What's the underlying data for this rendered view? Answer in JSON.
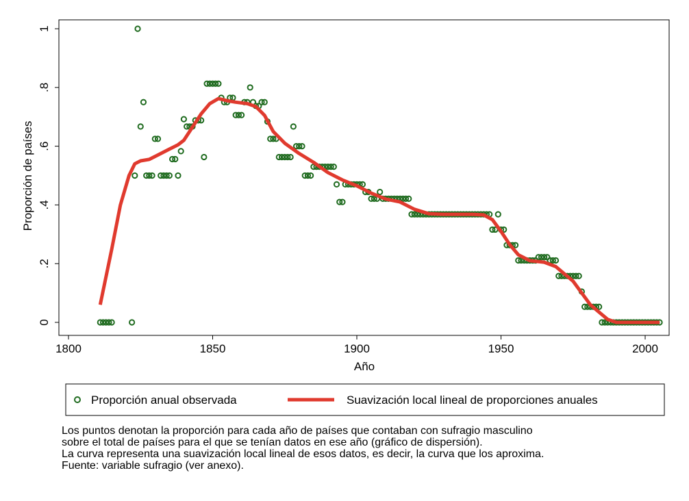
{
  "chart_data": {
    "type": "scatter",
    "xlabel": "Año",
    "ylabel": "Proporción de países",
    "xlim": [
      1800,
      2005
    ],
    "ylim": [
      0,
      1
    ],
    "x_ticks": [
      {
        "value": 1800,
        "label": "1800"
      },
      {
        "value": 1850,
        "label": "1850"
      },
      {
        "value": 1900,
        "label": "1900"
      },
      {
        "value": 1950,
        "label": "1950"
      },
      {
        "value": 2000,
        "label": "2000"
      }
    ],
    "y_ticks": [
      {
        "value": 0,
        "label": "0"
      },
      {
        "value": 0.2,
        "label": ".2"
      },
      {
        "value": 0.4,
        "label": ".4"
      },
      {
        "value": 0.6,
        "label": ".6"
      },
      {
        "value": 0.8,
        "label": ".8"
      },
      {
        "value": 1,
        "label": "1"
      }
    ],
    "grid": false,
    "legend_position": "bottom",
    "legend": [
      {
        "label": "Proporción anual observada",
        "marker": "hollow-circle",
        "color": "#1f6b1f"
      },
      {
        "label": "Suavización local lineal de proporciones anuales",
        "marker": "line",
        "color": "#e03a2e"
      }
    ],
    "series": [
      {
        "kind": "scatter",
        "color": "#1f6b1f",
        "points": [
          [
            1811,
            0
          ],
          [
            1812,
            0
          ],
          [
            1813,
            0
          ],
          [
            1814,
            0
          ],
          [
            1815,
            0
          ],
          [
            1822,
            0
          ],
          [
            1823,
            0.5
          ],
          [
            1824,
            1
          ],
          [
            1825,
            0.667
          ],
          [
            1826,
            0.75
          ],
          [
            1827,
            0.5
          ],
          [
            1828,
            0.5
          ],
          [
            1829,
            0.5
          ],
          [
            1830,
            0.625
          ],
          [
            1831,
            0.625
          ],
          [
            1832,
            0.5
          ],
          [
            1833,
            0.5
          ],
          [
            1834,
            0.5
          ],
          [
            1835,
            0.5
          ],
          [
            1836,
            0.556
          ],
          [
            1837,
            0.556
          ],
          [
            1838,
            0.5
          ],
          [
            1839,
            0.583
          ],
          [
            1840,
            0.692
          ],
          [
            1841,
            0.667
          ],
          [
            1842,
            0.667
          ],
          [
            1843,
            0.667
          ],
          [
            1844,
            0.688
          ],
          [
            1845,
            0.688
          ],
          [
            1846,
            0.688
          ],
          [
            1847,
            0.563
          ],
          [
            1848,
            0.813
          ],
          [
            1849,
            0.813
          ],
          [
            1850,
            0.813
          ],
          [
            1851,
            0.813
          ],
          [
            1852,
            0.813
          ],
          [
            1853,
            0.765
          ],
          [
            1854,
            0.75
          ],
          [
            1855,
            0.75
          ],
          [
            1856,
            0.765
          ],
          [
            1857,
            0.765
          ],
          [
            1858,
            0.706
          ],
          [
            1859,
            0.706
          ],
          [
            1860,
            0.706
          ],
          [
            1861,
            0.75
          ],
          [
            1862,
            0.75
          ],
          [
            1863,
            0.8
          ],
          [
            1864,
            0.75
          ],
          [
            1865,
            0.737
          ],
          [
            1866,
            0.737
          ],
          [
            1867,
            0.75
          ],
          [
            1868,
            0.75
          ],
          [
            1869,
            0.684
          ],
          [
            1870,
            0.625
          ],
          [
            1871,
            0.625
          ],
          [
            1872,
            0.625
          ],
          [
            1873,
            0.563
          ],
          [
            1874,
            0.563
          ],
          [
            1875,
            0.563
          ],
          [
            1876,
            0.563
          ],
          [
            1877,
            0.563
          ],
          [
            1878,
            0.667
          ],
          [
            1879,
            0.6
          ],
          [
            1880,
            0.6
          ],
          [
            1881,
            0.6
          ],
          [
            1882,
            0.5
          ],
          [
            1883,
            0.5
          ],
          [
            1884,
            0.5
          ],
          [
            1885,
            0.53
          ],
          [
            1886,
            0.53
          ],
          [
            1887,
            0.53
          ],
          [
            1888,
            0.53
          ],
          [
            1889,
            0.53
          ],
          [
            1890,
            0.53
          ],
          [
            1891,
            0.53
          ],
          [
            1892,
            0.53
          ],
          [
            1893,
            0.47
          ],
          [
            1894,
            0.41
          ],
          [
            1895,
            0.41
          ],
          [
            1896,
            0.47
          ],
          [
            1897,
            0.47
          ],
          [
            1898,
            0.47
          ],
          [
            1899,
            0.47
          ],
          [
            1900,
            0.47
          ],
          [
            1901,
            0.47
          ],
          [
            1902,
            0.47
          ],
          [
            1903,
            0.444
          ],
          [
            1904,
            0.444
          ],
          [
            1905,
            0.421
          ],
          [
            1906,
            0.421
          ],
          [
            1907,
            0.421
          ],
          [
            1908,
            0.444
          ],
          [
            1909,
            0.421
          ],
          [
            1910,
            0.421
          ],
          [
            1911,
            0.421
          ],
          [
            1912,
            0.421
          ],
          [
            1913,
            0.421
          ],
          [
            1914,
            0.421
          ],
          [
            1915,
            0.421
          ],
          [
            1916,
            0.421
          ],
          [
            1917,
            0.421
          ],
          [
            1918,
            0.421
          ],
          [
            1919,
            0.368
          ],
          [
            1920,
            0.368
          ],
          [
            1921,
            0.368
          ],
          [
            1922,
            0.368
          ],
          [
            1923,
            0.368
          ],
          [
            1924,
            0.368
          ],
          [
            1925,
            0.368
          ],
          [
            1926,
            0.368
          ],
          [
            1927,
            0.368
          ],
          [
            1928,
            0.368
          ],
          [
            1929,
            0.368
          ],
          [
            1930,
            0.368
          ],
          [
            1931,
            0.368
          ],
          [
            1932,
            0.368
          ],
          [
            1933,
            0.368
          ],
          [
            1934,
            0.368
          ],
          [
            1935,
            0.368
          ],
          [
            1936,
            0.368
          ],
          [
            1937,
            0.368
          ],
          [
            1938,
            0.368
          ],
          [
            1939,
            0.368
          ],
          [
            1940,
            0.368
          ],
          [
            1941,
            0.368
          ],
          [
            1942,
            0.368
          ],
          [
            1943,
            0.368
          ],
          [
            1944,
            0.368
          ],
          [
            1945,
            0.368
          ],
          [
            1946,
            0.368
          ],
          [
            1947,
            0.316
          ],
          [
            1948,
            0.316
          ],
          [
            1949,
            0.368
          ],
          [
            1950,
            0.316
          ],
          [
            1951,
            0.316
          ],
          [
            1952,
            0.263
          ],
          [
            1953,
            0.263
          ],
          [
            1954,
            0.263
          ],
          [
            1955,
            0.263
          ],
          [
            1956,
            0.211
          ],
          [
            1957,
            0.211
          ],
          [
            1958,
            0.211
          ],
          [
            1959,
            0.211
          ],
          [
            1960,
            0.211
          ],
          [
            1961,
            0.211
          ],
          [
            1962,
            0.211
          ],
          [
            1963,
            0.222
          ],
          [
            1964,
            0.222
          ],
          [
            1965,
            0.222
          ],
          [
            1966,
            0.222
          ],
          [
            1967,
            0.211
          ],
          [
            1968,
            0.211
          ],
          [
            1969,
            0.211
          ],
          [
            1970,
            0.158
          ],
          [
            1971,
            0.158
          ],
          [
            1972,
            0.158
          ],
          [
            1973,
            0.158
          ],
          [
            1974,
            0.158
          ],
          [
            1975,
            0.158
          ],
          [
            1976,
            0.158
          ],
          [
            1977,
            0.158
          ],
          [
            1978,
            0.105
          ],
          [
            1979,
            0.053
          ],
          [
            1980,
            0.053
          ],
          [
            1981,
            0.053
          ],
          [
            1982,
            0.053
          ],
          [
            1983,
            0.053
          ],
          [
            1984,
            0.053
          ],
          [
            1985,
            0
          ],
          [
            1986,
            0
          ],
          [
            1987,
            0
          ],
          [
            1988,
            0
          ],
          [
            1989,
            0
          ],
          [
            1990,
            0
          ],
          [
            1991,
            0
          ],
          [
            1992,
            0
          ],
          [
            1993,
            0
          ],
          [
            1994,
            0
          ],
          [
            1995,
            0
          ],
          [
            1996,
            0
          ],
          [
            1997,
            0
          ],
          [
            1998,
            0
          ],
          [
            1999,
            0
          ],
          [
            2000,
            0
          ],
          [
            2001,
            0
          ],
          [
            2002,
            0
          ],
          [
            2003,
            0
          ],
          [
            2004,
            0
          ],
          [
            2005,
            0
          ]
        ]
      },
      {
        "kind": "line",
        "color": "#e03a2e",
        "points": [
          [
            1811,
            0.06
          ],
          [
            1815,
            0.25
          ],
          [
            1818,
            0.4
          ],
          [
            1821,
            0.5
          ],
          [
            1823,
            0.54
          ],
          [
            1825,
            0.55
          ],
          [
            1828,
            0.555
          ],
          [
            1831,
            0.57
          ],
          [
            1835,
            0.59
          ],
          [
            1838,
            0.605
          ],
          [
            1840,
            0.62
          ],
          [
            1843,
            0.665
          ],
          [
            1846,
            0.71
          ],
          [
            1849,
            0.745
          ],
          [
            1852,
            0.762
          ],
          [
            1855,
            0.755
          ],
          [
            1858,
            0.75
          ],
          [
            1862,
            0.745
          ],
          [
            1865,
            0.735
          ],
          [
            1868,
            0.705
          ],
          [
            1871,
            0.65
          ],
          [
            1875,
            0.61
          ],
          [
            1880,
            0.575
          ],
          [
            1885,
            0.545
          ],
          [
            1890,
            0.51
          ],
          [
            1895,
            0.485
          ],
          [
            1900,
            0.465
          ],
          [
            1905,
            0.44
          ],
          [
            1910,
            0.42
          ],
          [
            1915,
            0.41
          ],
          [
            1920,
            0.385
          ],
          [
            1925,
            0.37
          ],
          [
            1930,
            0.368
          ],
          [
            1935,
            0.368
          ],
          [
            1940,
            0.368
          ],
          [
            1944,
            0.366
          ],
          [
            1947,
            0.35
          ],
          [
            1950,
            0.31
          ],
          [
            1953,
            0.265
          ],
          [
            1956,
            0.23
          ],
          [
            1960,
            0.21
          ],
          [
            1965,
            0.205
          ],
          [
            1969,
            0.19
          ],
          [
            1972,
            0.165
          ],
          [
            1975,
            0.14
          ],
          [
            1978,
            0.1
          ],
          [
            1981,
            0.06
          ],
          [
            1984,
            0.035
          ],
          [
            1987,
            0.01
          ],
          [
            1990,
            0
          ],
          [
            1995,
            0
          ],
          [
            2000,
            0
          ],
          [
            2005,
            0
          ]
        ]
      }
    ]
  },
  "notes": {
    "line1": "Los puntos denotan la proporción para cada año de países que contaban con sufragio masculino",
    "line2": "sobre el total de países para el que se tenían datos en ese año (gráfico de dispersión).",
    "line3": "La curva representa una suavización local lineal de esos datos, es decir, la curva que los aproxima.",
    "line4": "Fuente: variable sufragio (ver anexo)."
  }
}
